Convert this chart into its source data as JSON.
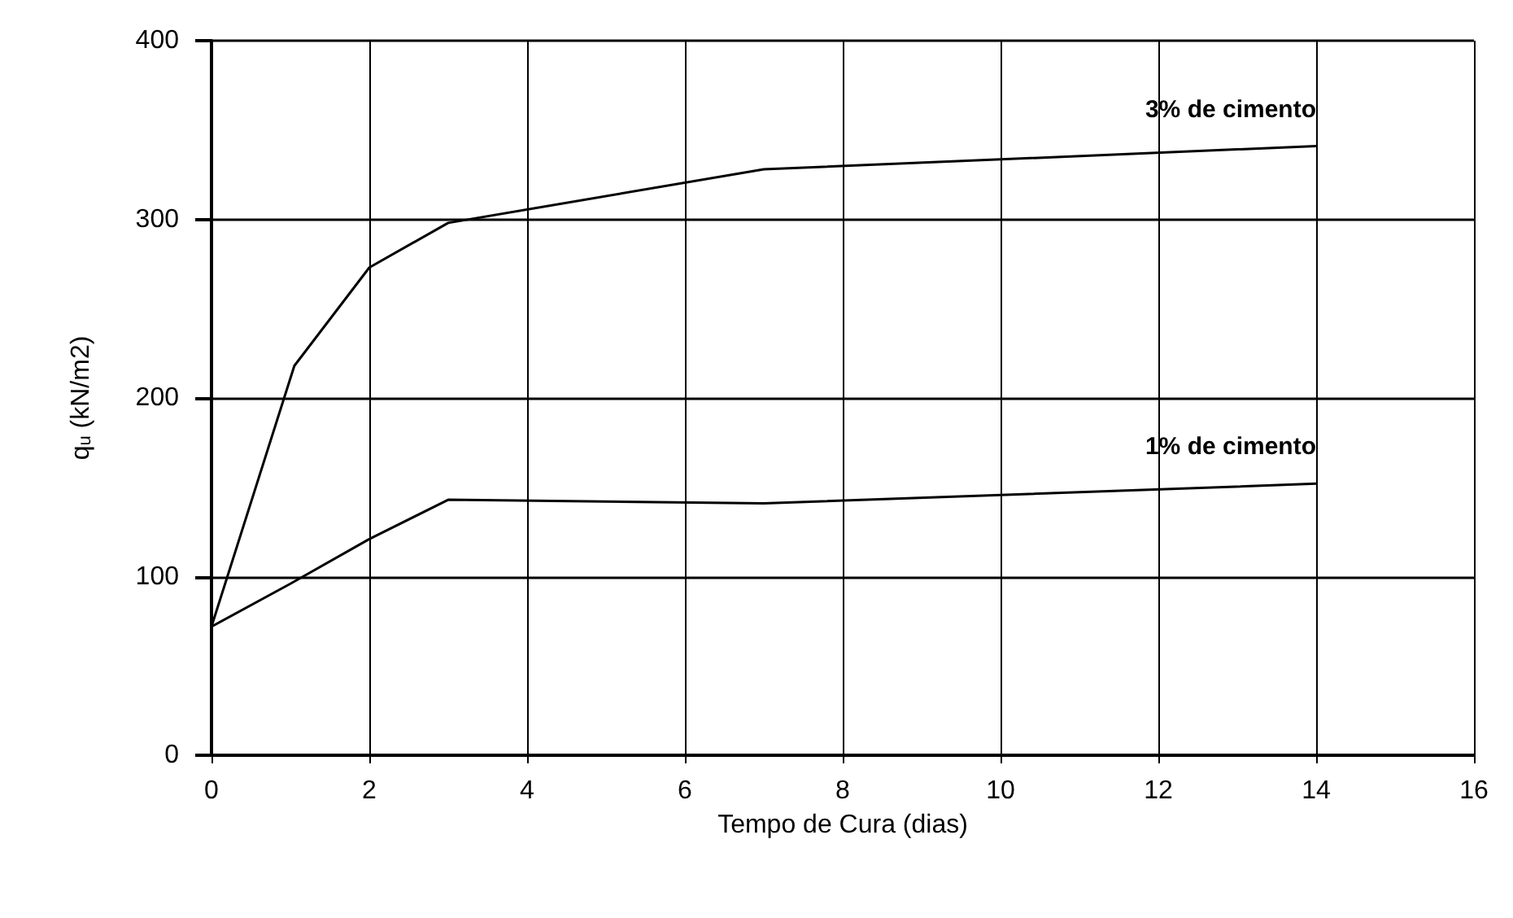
{
  "chart_data": {
    "type": "line",
    "xlabel": "Tempo de Cura (dias)",
    "ylabel": "q$_{u}$ (kN/m2)",
    "xlim": [
      0,
      16
    ],
    "xticks": [
      0,
      2,
      4,
      6,
      8,
      10,
      12,
      14,
      16
    ],
    "ylim": [
      0,
      400
    ],
    "yticks": [
      0,
      100,
      200,
      300,
      400
    ],
    "grid": true,
    "legend": false,
    "marker": "none",
    "line_style": "solid",
    "series": [
      {
        "name": "3% de cimento",
        "color": "#000000",
        "x": [
          0,
          1.05,
          2,
          3,
          7,
          14
        ],
        "values": [
          72,
          218,
          273,
          298,
          328,
          341
        ]
      },
      {
        "name": "1% de cimento",
        "color": "#000000",
        "x": [
          0,
          1,
          2,
          3,
          7,
          14
        ],
        "values": [
          72,
          96,
          121,
          143,
          141,
          152
        ]
      }
    ]
  }
}
